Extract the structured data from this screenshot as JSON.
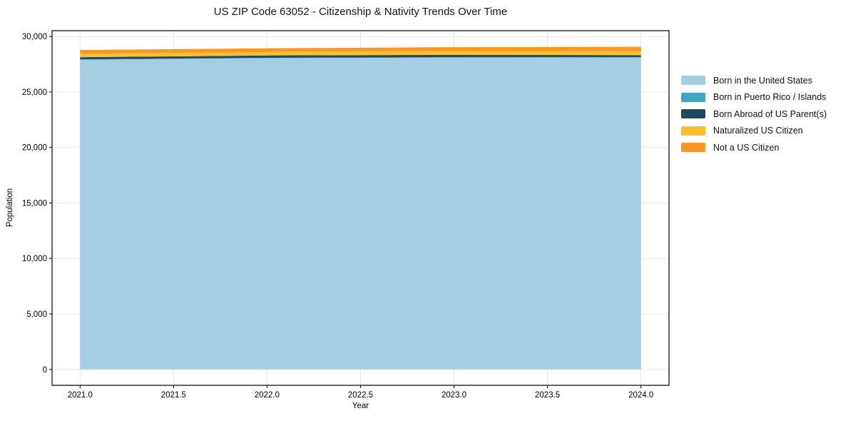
{
  "chart_data": {
    "type": "area",
    "stacked": true,
    "title": "US ZIP Code 63052 - Citizenship & Nativity Trends Over Time",
    "xlabel": "Year",
    "ylabel": "Population",
    "x": [
      2021,
      2022,
      2023,
      2024
    ],
    "series": [
      {
        "name": "Born in the United States",
        "color": "#a5cee3",
        "values": [
          27900,
          28050,
          28100,
          28110
        ]
      },
      {
        "name": "Born in Puerto Rico / Islands",
        "color": "#41a6c3",
        "values": [
          30,
          30,
          30,
          30
        ]
      },
      {
        "name": "Born Abroad of US Parent(s)",
        "color": "#214a5e",
        "values": [
          200,
          210,
          215,
          175
        ]
      },
      {
        "name": "Naturalized US Citizen",
        "color": "#fcc02f",
        "values": [
          320,
          310,
          345,
          370
        ]
      },
      {
        "name": "Not a US Citizen",
        "color": "#f79727",
        "values": [
          330,
          330,
          345,
          385
        ]
      }
    ],
    "xlim": [
      2020.85,
      2024.15
    ],
    "ylim": [
      -1430,
      30520
    ],
    "x_ticks": {
      "values": [
        2021.0,
        2021.5,
        2022.0,
        2022.5,
        2023.0,
        2023.5,
        2024.0
      ],
      "labels": [
        "2021.0",
        "2021.5",
        "2022.0",
        "2022.5",
        "2023.0",
        "2023.5",
        "2024.0"
      ]
    },
    "y_ticks": {
      "values": [
        0,
        5000,
        10000,
        15000,
        20000,
        25000,
        30000
      ],
      "labels": [
        "0",
        "5,000",
        "10,000",
        "15,000",
        "20,000",
        "25,000",
        "30,000"
      ]
    },
    "grid": true,
    "grid_color": "#e8e8e8",
    "axis_color": "#000000",
    "legend_position": "right-outside"
  }
}
